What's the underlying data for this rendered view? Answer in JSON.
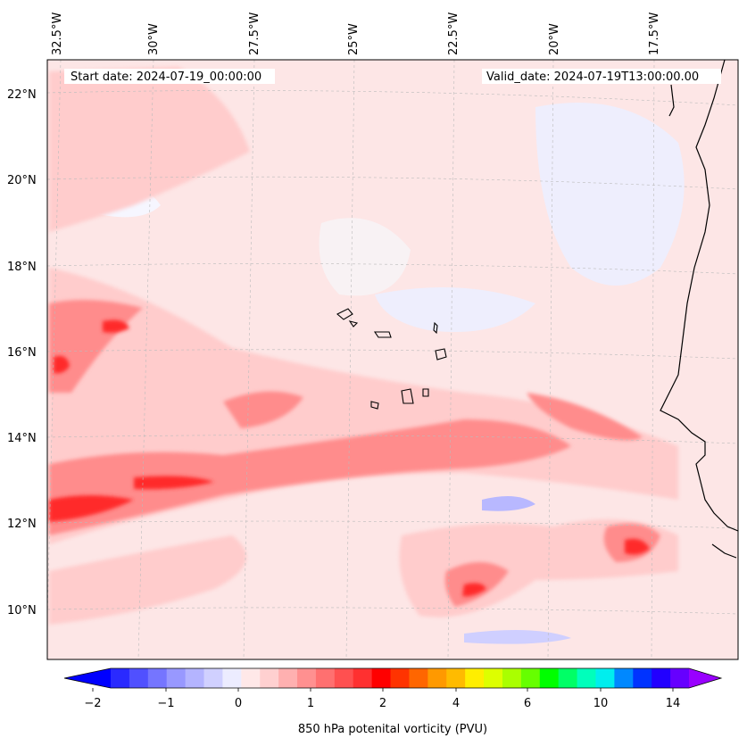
{
  "header": {
    "start_date": "Start date: 2024-07-19_00:00:00",
    "valid_date": "Valid_date: 2024-07-19T13:00:00.00"
  },
  "map": {
    "lon_labels": [
      "32.5°W",
      "30°W",
      "27.5°W",
      "25°W",
      "22.5°W",
      "20°W",
      "17.5°W"
    ],
    "lat_labels": [
      "22°N",
      "20°N",
      "18°N",
      "16°N",
      "14°N",
      "12°N",
      "10°N"
    ],
    "field": "850 hPa potential vorticity",
    "background_color": "#fde8e8"
  },
  "colorbar": {
    "title": "850 hPa potenital vorticity (PVU)",
    "tick_labels": [
      "−2",
      "−1",
      "0",
      "1",
      "2",
      "4",
      "6",
      "10",
      "14"
    ],
    "colors": [
      "#0000ff",
      "#2a2aff",
      "#5050ff",
      "#7575ff",
      "#9898ff",
      "#b4b4ff",
      "#d0d0ff",
      "#ececff",
      "#ffe8e8",
      "#ffd0d0",
      "#ffb0b0",
      "#ff9090",
      "#ff7070",
      "#ff5050",
      "#ff3030",
      "#ff0000",
      "#ff3300",
      "#ff6600",
      "#ff9900",
      "#ffbb00",
      "#ffee00",
      "#ddff00",
      "#aaff00",
      "#66ff00",
      "#00ff00",
      "#00ff66",
      "#00ffbb",
      "#00eeee",
      "#0088ff",
      "#0033ff",
      "#2200ff",
      "#6600ff",
      "#9900ff"
    ]
  }
}
